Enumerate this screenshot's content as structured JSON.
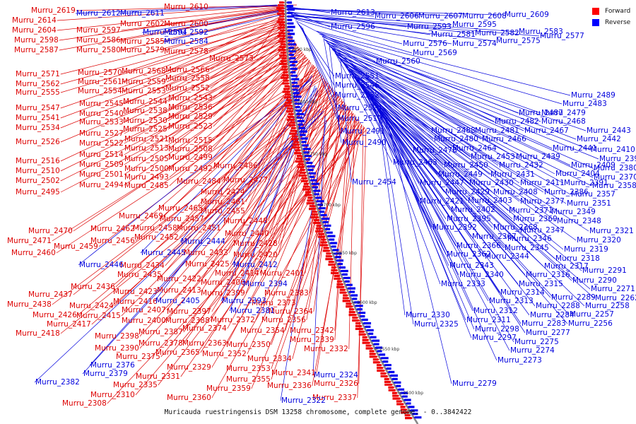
{
  "caption": "Muricauda ruestringensis DSM 13258 chromosome, complete genome. - 0..3842422",
  "legend": [
    {
      "label": "Forward",
      "color": "#ff0000"
    },
    {
      "label": "Reverse",
      "color": "#0000ff"
    }
  ],
  "colors": {
    "forward": "#dd0000",
    "reverse": "#0000dd",
    "backbone": "#888888"
  },
  "ticks": [
    "2850 kbp",
    "2800 kbp",
    "2750 kbp",
    "2700 kbp",
    "2650 kbp",
    "2600 kbp",
    "2550 kbp",
    "2500 kbp"
  ],
  "forward_genes": [
    "Murru_2619",
    "Murru_2614",
    "Murru_2610",
    "Murru_2604",
    "Murru_2602",
    "Murru_2600",
    "Murru_2598",
    "Murru_2597",
    "Murru_2587",
    "Murru_2586",
    "Murru_2585",
    "Murru_2580",
    "Murru_2579",
    "Murru_2578",
    "Murru_2573",
    "Murru_2571",
    "Murru_2570",
    "Murru_2568",
    "Murru_2566",
    "Murru_2562",
    "Murru_2561",
    "Murru_2559",
    "Murru_2558",
    "Murru_2555",
    "Murru_2554",
    "Murru_2553",
    "Murru_2552",
    "Murru_2547",
    "Murru_2545",
    "Murru_2544",
    "Murru_2543",
    "Murru_2541",
    "Murru_2540",
    "Murru_2538",
    "Murru_2536",
    "Murru_2534",
    "Murru_2533",
    "Murru_2530",
    "Murru_2529",
    "Murru_2527",
    "Murru_2525",
    "Murru_2523",
    "Murru_2526",
    "Murru_2522",
    "Murru_2521",
    "Murru_2515",
    "Murru_2514",
    "Murru_2513",
    "Murru_2508",
    "Murru_2516",
    "Murru_2509",
    "Murru_2505",
    "Murru_2499",
    "Murru_2510",
    "Murru_2501",
    "Murru_2500",
    "Murru_2492",
    "Murru_2486",
    "Murru_2502",
    "Murru_2494",
    "Murru_2493",
    "Murru_2485",
    "Murru_2484",
    "Murru_2477",
    "Murru_2495",
    "Murru_2474",
    "Murru_2461",
    "Murru_2465",
    "Murru_2455",
    "Murru_2469",
    "Murru_2457",
    "Murru_2448",
    "Murru_2470",
    "Murru_2462",
    "Murru_2458",
    "Murru_2451",
    "Murru_2471",
    "Murru_2456",
    "Murru_2452",
    "Murru_2440",
    "Murru_2459",
    "Murru_2428",
    "Murru_2460",
    "Murru_2433",
    "Murru_2420",
    "Murru_2434",
    "Murru_2425",
    "Murru_2435",
    "Murru_2422",
    "Murru_2414",
    "Murru_2401",
    "Murru_2436",
    "Murru_2413",
    "Murru_2406",
    "Murru_2437",
    "Murru_2423",
    "Murru_2399",
    "Murru_2383",
    "Murru_2438",
    "Murru_2424",
    "Murru_2416",
    "Murru_2373",
    "Murru_2426",
    "Murru_2415",
    "Murru_2407",
    "Murru_2397",
    "Murru_2364",
    "Murru_2417",
    "Murru_2400",
    "Murru_2388",
    "Murru_2372",
    "Murru_2356",
    "Murru_2418",
    "Murru_2387",
    "Murru_2374",
    "Murru_2354",
    "Murru_2342",
    "Murru_2398",
    "Murru_2378",
    "Murru_2363",
    "Murru_2339",
    "Murru_2390",
    "Murru_2365",
    "Murru_2350",
    "Murru_2332",
    "Murru_2375",
    "Murru_2352",
    "Murru_2334",
    "Murru_2329",
    "Murru_2353",
    "Murru_2341",
    "Murru_2331",
    "Murru_2355",
    "Murru_2335",
    "Murru_2359",
    "Murru_2336",
    "Murru_2326",
    "Murru_2310",
    "Murru_2360",
    "Murru_2337",
    "Murru_2308",
    "Murru_2361"
  ],
  "reverse_genes": [
    "Murru_2612",
    "Murru_2611",
    "Murru_2613",
    "Murru_2606",
    "Murru_2607",
    "Murru_2608",
    "Murru_2609",
    "Murru_2596",
    "Murru_2593",
    "Murru_2595",
    "Murru_2594",
    "Murru_2592",
    "Murru_2581",
    "Murru_2582",
    "Murru_2583",
    "Murru_2577",
    "Murru_2584",
    "Murru_2576",
    "Murru_2574",
    "Murru_2575",
    "Murru_2569",
    "Murru_2560",
    "Murru_2551",
    "Murru_2546",
    "Murru_2532",
    "Murru_2524",
    "Murru_2519",
    "Murru_2489",
    "Murru_2483",
    "Murru_2487",
    "Murru_2479",
    "Murru_2482",
    "Murru_2468",
    "Murru_2491",
    "Murru_2488",
    "Murru_2481",
    "Murru_2467",
    "Murru_2443",
    "Murru_2480",
    "Murru_2466",
    "Murru_2442",
    "Murru_2490",
    "Murru_2464",
    "Murru_2478",
    "Murru_2441",
    "Murru_2410",
    "Murru_2453",
    "Murru_2439",
    "Murru_2396",
    "Murru_2463",
    "Murru_2450",
    "Murru_2432",
    "Murru_2409",
    "Murru_2380",
    "Murru_2449",
    "Murru_2431",
    "Murru_2404",
    "Murru_2370",
    "Murru_2454",
    "Murru_2447",
    "Murru_2430",
    "Murru_2411",
    "Murru_2391",
    "Murru_2358",
    "Murru_2429",
    "Murru_2408",
    "Murru_2386",
    "Murru_2357",
    "Murru_2421",
    "Murru_2403",
    "Murru_2377",
    "Murru_2351",
    "Murru_2402",
    "Murru_2371",
    "Murru_2349",
    "Murru_2395",
    "Murru_2369",
    "Murru_2348",
    "Murru_2392",
    "Murru_2368",
    "Murru_2367",
    "Murru_2347",
    "Murru_2366",
    "Murru_2346",
    "Murru_2321",
    "Murru_2345",
    "Murru_2362",
    "Murru_2344",
    "Murru_2320",
    "Murru_2319",
    "Murru_2343",
    "Murru_2318",
    "Murru_2317",
    "Murru_2340",
    "Murru_2316",
    "Murru_2291",
    "Murru_2315",
    "Murru_2290",
    "Murru_2333",
    "Murru_2314",
    "Murru_2313",
    "Murru_2289",
    "Murru_2271",
    "Murru_2262",
    "Murru_2288",
    "Murru_2258",
    "Murru_2312",
    "Murru_2284",
    "Murru_2257",
    "Murru_2330",
    "Murru_2311",
    "Murru_2283",
    "Murru_2256",
    "Murru_2325",
    "Murru_2298",
    "Murru_2277",
    "Murru_2297",
    "Murru_2275",
    "Murru_2274",
    "Murru_2273",
    "Murru_2279",
    "Murru_2445",
    "Murru_2444",
    "Murru_2446",
    "Murru_2412",
    "Murru_2394",
    "Murru_2405",
    "Murru_2393",
    "Murru_2381",
    "Murru_2376",
    "Murru_2382",
    "Murru_2379",
    "Murru_2324",
    "Murru_2322"
  ]
}
